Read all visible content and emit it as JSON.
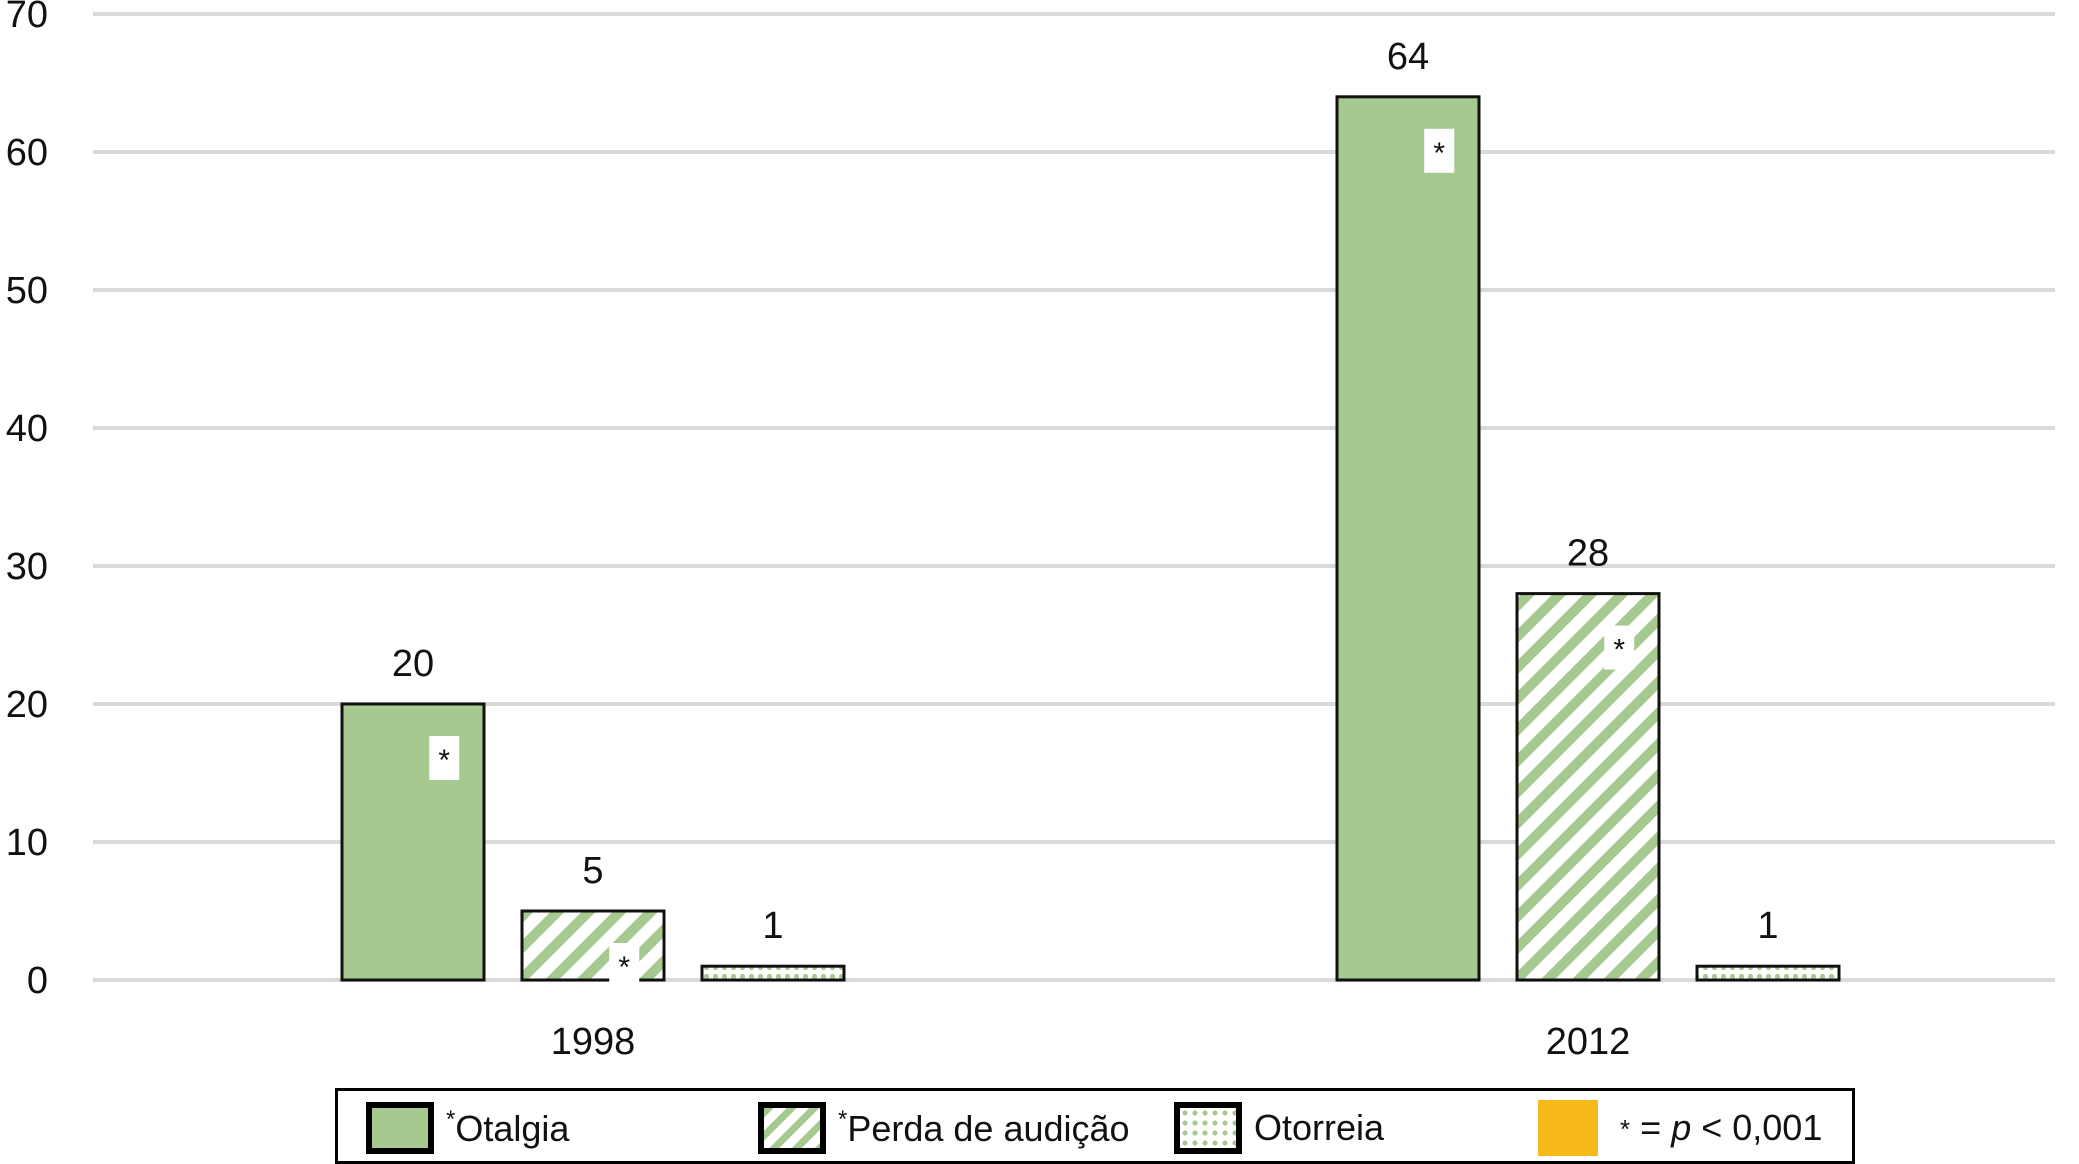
{
  "chart_data": {
    "type": "bar",
    "categories": [
      "1998",
      "2012"
    ],
    "series": [
      {
        "name": "Otalgia",
        "values": [
          20,
          64
        ],
        "significant": true,
        "pattern": "solid"
      },
      {
        "name": "Perda de audição",
        "values": [
          5,
          28
        ],
        "significant": true,
        "pattern": "hatch"
      },
      {
        "name": "Otorreia",
        "values": [
          1,
          1
        ],
        "significant": false,
        "pattern": "dots"
      }
    ],
    "yticks": [
      0,
      10,
      20,
      30,
      40,
      50,
      60,
      70
    ],
    "ylim": [
      0,
      70
    ],
    "grid": true,
    "legend_position": "bottom",
    "significance_marker": "*",
    "significance_note": {
      "symbol": "*",
      "equals": "=",
      "p": "p",
      "rest": "< 0,001"
    },
    "colors": {
      "bar_fill": "#a6c98f",
      "grid": "#d9d9d9",
      "note_swatch": "#f8b91c"
    }
  }
}
